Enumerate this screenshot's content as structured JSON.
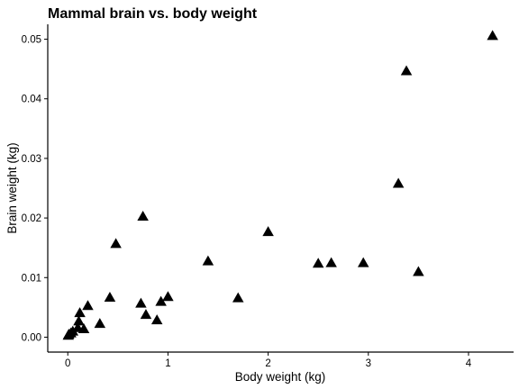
{
  "chart_data": {
    "type": "scatter",
    "title": "Mammal brain vs. body weight",
    "xlabel": "Body weight (kg)",
    "ylabel": "Brain weight (kg)",
    "xlim": [
      -0.2,
      4.45
    ],
    "ylim": [
      -0.0025,
      0.0525
    ],
    "xticks": [
      0,
      1,
      2,
      3,
      4
    ],
    "xtick_labels": [
      "0",
      "1",
      "2",
      "3",
      "4"
    ],
    "yticks": [
      0.0,
      0.01,
      0.02,
      0.03,
      0.04,
      0.05
    ],
    "ytick_labels": [
      "0.00",
      "0.01",
      "0.02",
      "0.03",
      "0.04",
      "0.05"
    ],
    "grid": false,
    "marker": "triangle",
    "marker_color": "#000000",
    "points": [
      {
        "x": 4.24,
        "y": 0.0505
      },
      {
        "x": 3.38,
        "y": 0.0446
      },
      {
        "x": 3.3,
        "y": 0.0257
      },
      {
        "x": 0.75,
        "y": 0.0202
      },
      {
        "x": 2.0,
        "y": 0.0176
      },
      {
        "x": 0.48,
        "y": 0.0156
      },
      {
        "x": 1.4,
        "y": 0.0127
      },
      {
        "x": 2.5,
        "y": 0.0123
      },
      {
        "x": 2.63,
        "y": 0.0124
      },
      {
        "x": 2.95,
        "y": 0.0124
      },
      {
        "x": 3.5,
        "y": 0.0109
      },
      {
        "x": 0.42,
        "y": 0.0066
      },
      {
        "x": 1.0,
        "y": 0.0067
      },
      {
        "x": 1.7,
        "y": 0.0065
      },
      {
        "x": 0.93,
        "y": 0.0059
      },
      {
        "x": 0.73,
        "y": 0.0056
      },
      {
        "x": 0.2,
        "y": 0.0052
      },
      {
        "x": 0.12,
        "y": 0.004
      },
      {
        "x": 0.78,
        "y": 0.0037
      },
      {
        "x": 0.89,
        "y": 0.0028
      },
      {
        "x": 0.11,
        "y": 0.0026
      },
      {
        "x": 0.32,
        "y": 0.0022
      },
      {
        "x": 0.1,
        "y": 0.0015
      },
      {
        "x": 0.16,
        "y": 0.0013
      },
      {
        "x": 0.05,
        "y": 0.0009
      },
      {
        "x": 0.03,
        "y": 0.0006
      },
      {
        "x": 0.01,
        "y": 0.0004
      },
      {
        "x": 0.005,
        "y": 0.0002
      }
    ]
  }
}
